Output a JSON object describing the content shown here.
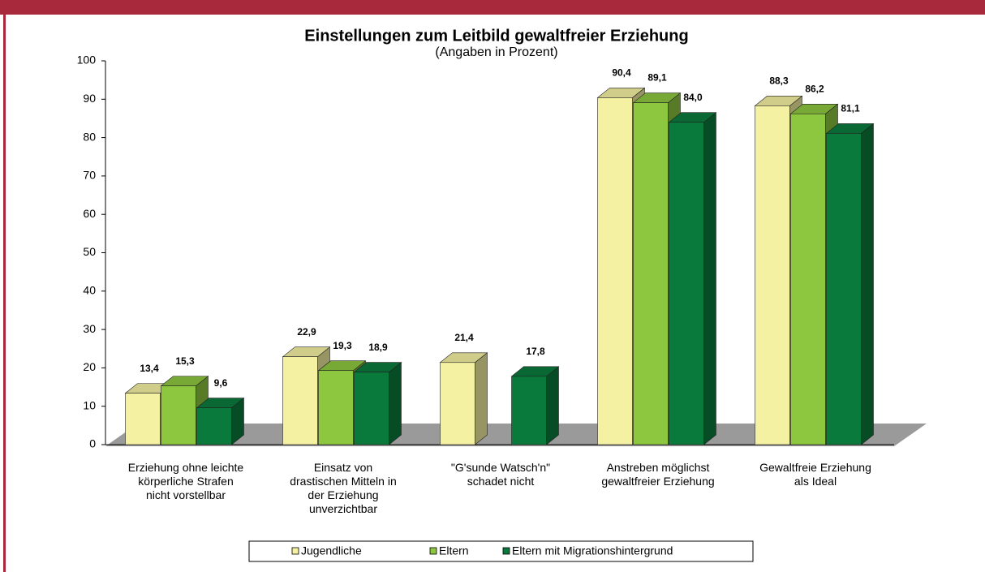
{
  "chart_data": {
    "type": "bar3d",
    "title": "Einstellungen zum Leitbild gewaltfreier Erziehung",
    "subtitle": "(Angaben in Prozent)",
    "categories": [
      "Erziehung  ohne leichte\nkörperliche Strafen\nnicht vorstellbar",
      "Einsatz von\ndrastischen Mitteln in\nder Erziehung\nunverzichtbar",
      "\"G'sunde Watsch'n\"\nschadet nicht",
      "Anstreben möglichst\ngewaltfreier Erziehung",
      "Gewaltfreie Erziehung\nals Ideal"
    ],
    "series": [
      {
        "name": "Jugendliche",
        "color": "#f5f1a3",
        "values": [
          13.4,
          22.9,
          21.4,
          90.4,
          88.3
        ],
        "value_labels": [
          "13,4",
          "22,9",
          "21,4",
          "90,4",
          "88,3"
        ]
      },
      {
        "name": "Eltern",
        "color": "#8dc63f",
        "values": [
          15.3,
          19.3,
          null,
          89.1,
          86.2
        ],
        "value_labels": [
          "15,3",
          "19,3",
          null,
          "89,1",
          "86,2"
        ]
      },
      {
        "name": "Eltern mit Migrationshintergrund",
        "color": "#0a7a3c",
        "values": [
          9.6,
          18.9,
          17.8,
          84.0,
          81.1
        ],
        "value_labels": [
          "9,6",
          "18,9",
          "17,8",
          "84,0",
          "81,1"
        ]
      }
    ],
    "ylim": [
      0,
      100
    ],
    "yticks": [
      0,
      10,
      20,
      30,
      40,
      50,
      60,
      70,
      80,
      90,
      100
    ],
    "legend": "bottom"
  }
}
